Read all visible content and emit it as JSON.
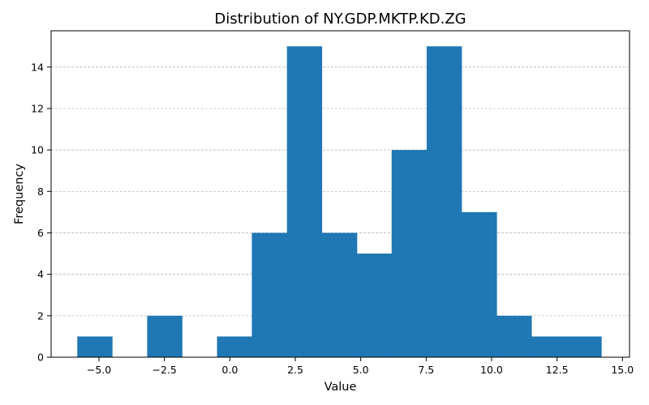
{
  "chart_data": {
    "type": "bar",
    "subtype": "histogram",
    "title": "Distribution of NY.GDP.MKTP.KD.ZG",
    "xlabel": "Value",
    "ylabel": "Frequency",
    "bar_color": "#1f77b4",
    "grid": "y-axis, dashed",
    "xlim": [
      -6.83,
      15.27
    ],
    "ylim": [
      0,
      15.75
    ],
    "x_ticks": [
      -5.0,
      -2.5,
      0.0,
      2.5,
      5.0,
      7.5,
      10.0,
      12.5,
      15.0
    ],
    "x_tick_labels": [
      "−5.0",
      "−2.5",
      "0.0",
      "2.5",
      "5.0",
      "7.5",
      "10.0",
      "12.5",
      "15.0"
    ],
    "y_ticks": [
      0,
      2,
      4,
      6,
      8,
      10,
      12,
      14
    ],
    "y_tick_labels": [
      "0",
      "2",
      "4",
      "6",
      "8",
      "10",
      "12",
      "14"
    ],
    "bin_edges": [
      -5.83,
      -4.5,
      -3.16,
      -1.83,
      -0.49,
      0.84,
      2.18,
      3.51,
      4.85,
      6.18,
      7.52,
      8.85,
      10.19,
      11.52,
      12.86,
      14.19
    ],
    "counts": [
      1,
      0,
      2,
      0,
      1,
      6,
      15,
      6,
      5,
      10,
      15,
      7,
      2,
      1,
      1
    ]
  }
}
